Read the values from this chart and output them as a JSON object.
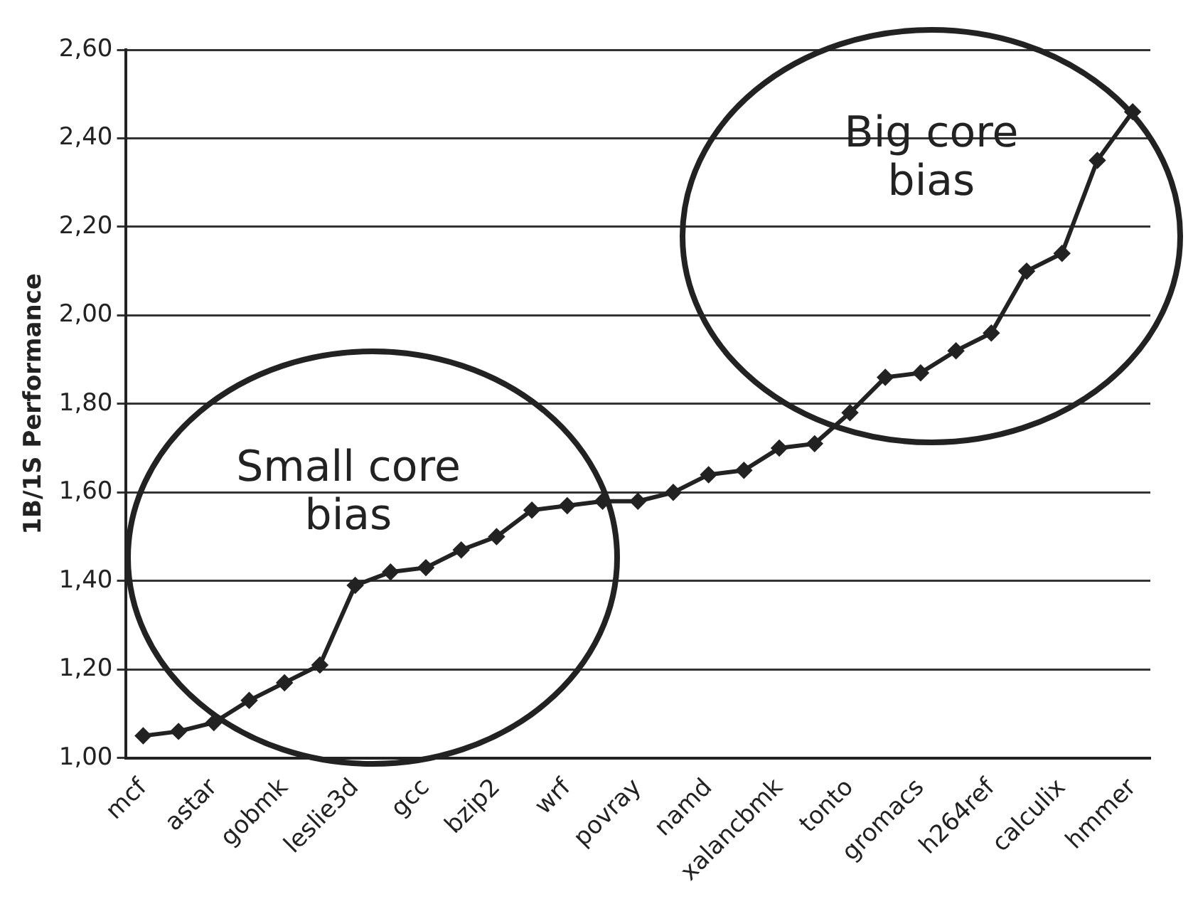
{
  "chart_data": {
    "type": "line",
    "ylabel": "1B/1S Performance",
    "categories": [
      "mcf",
      null,
      "astar",
      null,
      "gobmk",
      null,
      "leslie3d",
      null,
      "gcc",
      null,
      "bzip2",
      null,
      "wrf",
      null,
      "povray",
      null,
      "namd",
      null,
      "xalancbmk",
      null,
      "tonto",
      null,
      "gromacs",
      null,
      "h264ref",
      null,
      "calculix",
      null,
      "hmmer"
    ],
    "series": [
      {
        "color": "#222222",
        "values": [
          1.05,
          1.06,
          1.08,
          1.13,
          1.17,
          1.21,
          1.39,
          1.42,
          1.43,
          1.47,
          1.5,
          1.56,
          1.57,
          1.58,
          1.58,
          1.6,
          1.64,
          1.65,
          1.7,
          1.71,
          1.78,
          1.86,
          1.87,
          1.92,
          1.96,
          2.1,
          2.14,
          2.35,
          2.46
        ]
      }
    ],
    "ylim": [
      1.0,
      2.6
    ],
    "yticks": [
      {
        "value": 1.0,
        "label": "1,00"
      },
      {
        "value": 1.2,
        "label": "1,20"
      },
      {
        "value": 1.4,
        "label": "1,40"
      },
      {
        "value": 1.6,
        "label": "1,60"
      },
      {
        "value": 1.8,
        "label": "1,80"
      },
      {
        "value": 2.0,
        "label": "2,00"
      },
      {
        "value": 2.2,
        "label": "2,20"
      },
      {
        "value": 2.4,
        "label": "2,40"
      },
      {
        "value": 2.6,
        "label": "2,60"
      }
    ],
    "grid": "y",
    "marker": "diamond",
    "line_style": "solid",
    "legend": false,
    "annotations": [
      "Small core bias",
      "Big core bias"
    ]
  }
}
